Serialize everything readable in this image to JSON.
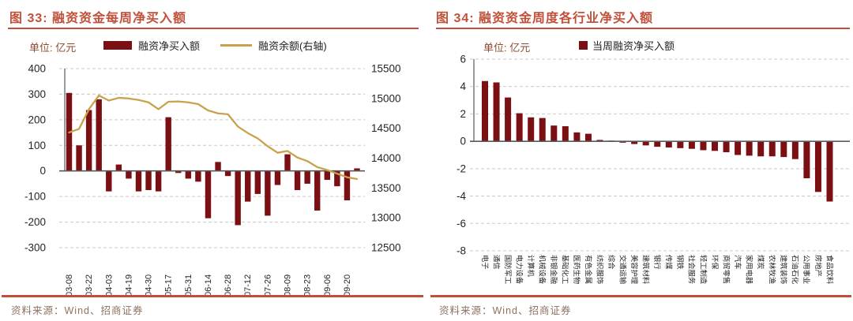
{
  "fig33": {
    "title": "图 33: 融资资金每周净买入额",
    "unit_label": "单位: 亿元",
    "legend_bar_label": "融资净买入额",
    "legend_line_label": "融资余额(右轴)",
    "source": "资料来源：Wind、招商证券"
  },
  "fig34": {
    "title": "图 34: 融资资金周度各行业净买入额",
    "unit_label": "单位: 亿元",
    "legend_bar_label": "当周融资净买入额",
    "source": "资料来源：Wind、招商证券"
  },
  "colors": {
    "accent_red": "#C1503A",
    "bar_maroon": "#7A1013",
    "line_gold": "#C9A24E",
    "unit_text": "#8E4A2F",
    "source_text": "#8C7261",
    "tick_text": "#262626",
    "gridline": "#C9C9C9",
    "axis_line": "#595959"
  },
  "chart_data": [
    {
      "id": "fig33",
      "type": "bar",
      "title": "融资资金每周净买入额",
      "unit": "亿元",
      "x_tick_labels": [
        "03-08",
        "03-22",
        "04-03",
        "04-19",
        "04-30",
        "05-17",
        "05-31",
        "06-14",
        "06-28",
        "07-12",
        "07-26",
        "08-09",
        "08-23",
        "09-06",
        "09-20"
      ],
      "x_tick_every_n_bars": 2,
      "series": [
        {
          "name": "融资净买入额",
          "type": "bar",
          "axis": "left",
          "values": [
            305,
            100,
            238,
            280,
            -80,
            25,
            -30,
            -80,
            -75,
            -80,
            210,
            -8,
            -30,
            -42,
            -185,
            35,
            -20,
            -212,
            -120,
            -90,
            -175,
            -55,
            65,
            -75,
            -50,
            -155,
            -35,
            -60,
            -115,
            10
          ]
        },
        {
          "name": "融资余额(右轴)",
          "type": "line",
          "axis": "right",
          "values": [
            14430,
            14490,
            14820,
            15050,
            14965,
            15010,
            15000,
            14975,
            14935,
            14820,
            14945,
            14950,
            14935,
            14905,
            14800,
            14750,
            14735,
            14530,
            14420,
            14330,
            14200,
            14090,
            14120,
            14010,
            13950,
            13850,
            13800,
            13740,
            13680,
            13650
          ]
        }
      ],
      "left_axis": {
        "min": -300,
        "max": 400,
        "ticks": [
          400,
          300,
          200,
          100,
          0,
          -100,
          -200,
          -300
        ]
      },
      "right_axis": {
        "min": 12500,
        "max": 15500,
        "ticks": [
          15500,
          15000,
          14500,
          14000,
          13500,
          13000,
          12500
        ]
      },
      "grid": true,
      "legend_position": "top"
    },
    {
      "id": "fig34",
      "type": "bar",
      "title": "融资资金周度各行业净买入额",
      "unit": "亿元",
      "series_name": "当周融资净买入额",
      "categories": [
        "电子",
        "通信",
        "国防军工",
        "电力设备",
        "计算机",
        "机械设备",
        "非银金融",
        "基础化工",
        "医药生物",
        "有色金属",
        "纺织服饰",
        "综合",
        "交通运输",
        "美容护理",
        "建筑材料",
        "银行",
        "传媒",
        "钢铁",
        "社会服务",
        "轻工制造",
        "环保",
        "商贸零售",
        "汽车",
        "家用电器",
        "煤炭",
        "农林牧渔",
        "建筑装饰",
        "石油石化",
        "公用事业",
        "房地产",
        "食品饮料"
      ],
      "values": [
        4.4,
        4.3,
        3.2,
        2.05,
        1.75,
        1.7,
        1.15,
        1.1,
        0.65,
        0.55,
        0.1,
        0.05,
        -0.1,
        -0.2,
        -0.3,
        -0.4,
        -0.45,
        -0.5,
        -0.55,
        -0.65,
        -0.7,
        -0.8,
        -1.0,
        -1.05,
        -1.1,
        -1.1,
        -1.15,
        -1.3,
        -2.7,
        -3.7,
        -4.4
      ],
      "ylim": [
        -8,
        6
      ],
      "yticks": [
        6,
        4,
        2,
        0,
        -2,
        -4,
        -6,
        -8
      ],
      "grid": true,
      "legend_position": "top"
    }
  ]
}
